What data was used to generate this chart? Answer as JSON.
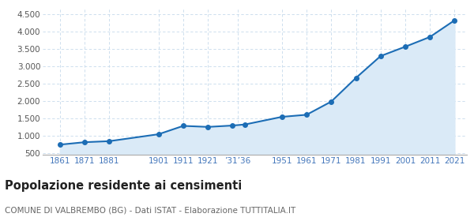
{
  "years": [
    1861,
    1871,
    1881,
    1901,
    1911,
    1921,
    1931,
    1936,
    1951,
    1961,
    1971,
    1981,
    1991,
    2001,
    2011,
    2021
  ],
  "population": [
    740,
    810,
    840,
    1040,
    1280,
    1250,
    1290,
    1320,
    1540,
    1600,
    1980,
    2660,
    3290,
    3560,
    3840,
    4320
  ],
  "x_tick_positions": [
    1861,
    1871,
    1881,
    1901,
    1911,
    1921,
    1933,
    1951,
    1961,
    1971,
    1981,
    1991,
    2001,
    2011,
    2021
  ],
  "x_tick_labels": [
    "1861",
    "1871",
    "1881",
    "1901",
    "1911",
    "1921",
    "’31’36",
    "1951",
    "1961",
    "1971",
    "1981",
    "1991",
    "2001",
    "2011",
    "2021"
  ],
  "ylim": [
    450,
    4650
  ],
  "yticks": [
    500,
    1000,
    1500,
    2000,
    2500,
    3000,
    3500,
    4000,
    4500
  ],
  "xlim": [
    1854,
    2026
  ],
  "line_color": "#1c6db5",
  "fill_color": "#daeaf7",
  "marker_color": "#1c6db5",
  "grid_color": "#c5d9eb",
  "background_color": "#ffffff",
  "title": "Popolazione residente ai censimenti",
  "subtitle": "COMUNE DI VALBREMBO (BG) - Dati ISTAT - Elaborazione TUTTITALIA.IT",
  "title_fontsize": 10.5,
  "subtitle_fontsize": 7.5,
  "tick_fontsize": 7.5,
  "tick_color": "#4477bb"
}
